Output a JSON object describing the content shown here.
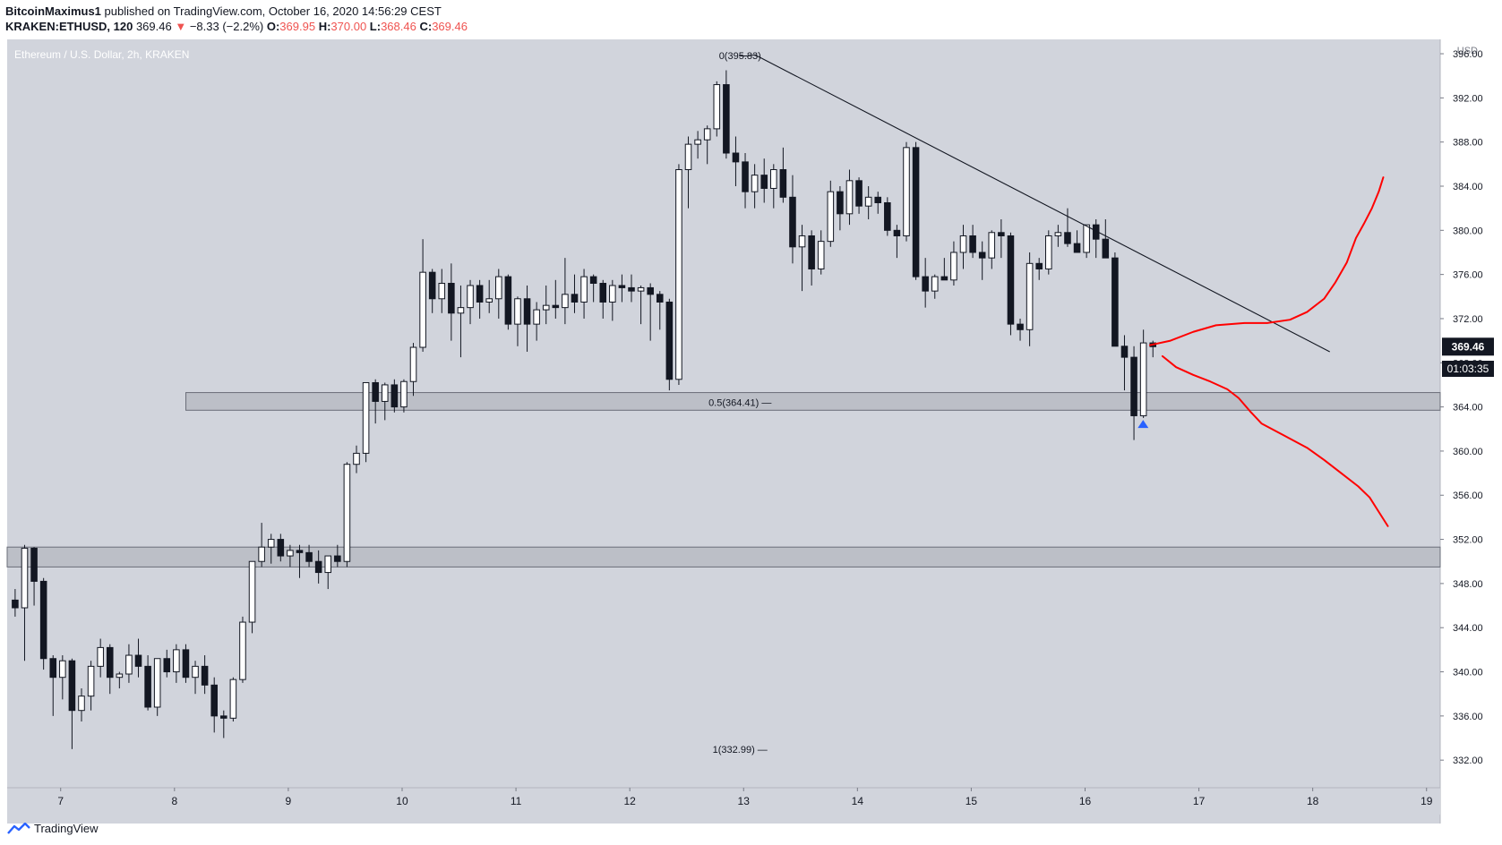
{
  "header": {
    "author": "BitcoinMaximus1",
    "published": "published on TradingView.com, October 16, 2020 14:56:29 CEST",
    "symbol": "KRAKEN:ETHUSD, 120",
    "last": "369.46",
    "arrow": "▼",
    "change": "−8.33 (−2.2%)",
    "o_label": "O:",
    "o": "369.95",
    "h_label": "H:",
    "h": "370.00",
    "l_label": "L:",
    "l": "368.46",
    "c_label": "C:",
    "c": "369.46"
  },
  "footer": {
    "brand": "TradingView"
  },
  "chart_data": {
    "type": "candlestick",
    "title": "Ethereum / U.S. Dollar, 2h, KRAKEN",
    "currency": "USD",
    "ylim": [
      329.5,
      397.3
    ],
    "xlim": [
      6.53,
      19.12
    ],
    "y_ticks": [
      "396.00",
      "392.00",
      "388.00",
      "384.00",
      "380.00",
      "376.00",
      "372.00",
      "368.00",
      "364.00",
      "360.00",
      "356.00",
      "352.00",
      "348.00",
      "344.00",
      "340.00",
      "336.00",
      "332.00"
    ],
    "x_ticks": [
      "7",
      "8",
      "9",
      "10",
      "11",
      "12",
      "13",
      "14",
      "15",
      "16",
      "17",
      "18",
      "19"
    ],
    "price_label": "369.46",
    "countdown_label": "01:03:35",
    "candle_step_days": 0.0833,
    "candles_start_day": 6.6,
    "candles": [
      [
        346.5,
        347.5,
        345.0,
        345.8
      ],
      [
        345.8,
        351.5,
        341.0,
        351.2
      ],
      [
        351.2,
        351.3,
        346.0,
        348.2
      ],
      [
        348.2,
        348.5,
        340.2,
        341.2
      ],
      [
        341.2,
        341.5,
        336.0,
        339.5
      ],
      [
        339.5,
        341.5,
        337.5,
        341.0
      ],
      [
        341.0,
        341.2,
        333.0,
        336.5
      ],
      [
        336.5,
        338.5,
        335.5,
        337.8
      ],
      [
        337.8,
        341.0,
        336.5,
        340.5
      ],
      [
        340.5,
        343.0,
        339.5,
        342.2
      ],
      [
        342.2,
        342.5,
        338.0,
        339.5
      ],
      [
        339.5,
        340.0,
        338.5,
        339.8
      ],
      [
        339.8,
        342.5,
        339.0,
        341.5
      ],
      [
        341.5,
        343.0,
        339.5,
        340.5
      ],
      [
        340.5,
        341.5,
        336.5,
        336.8
      ],
      [
        336.8,
        341.0,
        336.0,
        341.2
      ],
      [
        341.2,
        342.0,
        339.5,
        340.0
      ],
      [
        340.0,
        342.5,
        339.0,
        342.0
      ],
      [
        342.0,
        342.5,
        339.0,
        339.5
      ],
      [
        339.5,
        341.0,
        338.0,
        340.5
      ],
      [
        340.5,
        341.5,
        338.0,
        338.8
      ],
      [
        338.8,
        339.5,
        334.5,
        336.0
      ],
      [
        336.0,
        336.5,
        334.0,
        335.8
      ],
      [
        335.8,
        339.5,
        335.5,
        339.3
      ],
      [
        339.3,
        345.0,
        339.0,
        344.5
      ],
      [
        344.5,
        350.0,
        343.5,
        350.0
      ],
      [
        350.0,
        353.5,
        349.5,
        351.3
      ],
      [
        351.3,
        352.5,
        349.8,
        352.0
      ],
      [
        352.0,
        352.5,
        350.0,
        350.5
      ],
      [
        350.5,
        351.5,
        349.5,
        351.0
      ],
      [
        351.0,
        351.5,
        348.5,
        350.8
      ],
      [
        350.8,
        351.5,
        349.5,
        350.0
      ],
      [
        350.0,
        351.0,
        348.0,
        349.0
      ],
      [
        349.0,
        350.5,
        347.5,
        350.5
      ],
      [
        350.5,
        351.5,
        349.5,
        350.0
      ],
      [
        350.0,
        359.0,
        349.5,
        358.8
      ],
      [
        358.8,
        360.5,
        358.0,
        359.8
      ],
      [
        359.8,
        366.0,
        359.0,
        366.2
      ],
      [
        366.2,
        366.5,
        362.5,
        364.5
      ],
      [
        364.5,
        366.2,
        362.8,
        366.0
      ],
      [
        366.0,
        366.5,
        363.5,
        364.0
      ],
      [
        364.0,
        366.5,
        363.5,
        366.3
      ],
      [
        366.3,
        369.8,
        365.0,
        369.4
      ],
      [
        369.4,
        379.2,
        369.0,
        376.2
      ],
      [
        376.2,
        376.5,
        372.5,
        373.8
      ],
      [
        373.8,
        376.5,
        372.5,
        375.2
      ],
      [
        375.2,
        377.0,
        370.0,
        372.5
      ],
      [
        372.5,
        375.0,
        368.5,
        373.0
      ],
      [
        373.0,
        375.5,
        371.5,
        375.0
      ],
      [
        375.0,
        375.5,
        372.0,
        373.5
      ],
      [
        373.5,
        375.5,
        372.5,
        373.8
      ],
      [
        373.8,
        376.5,
        372.0,
        375.8
      ],
      [
        375.8,
        376.0,
        371.0,
        371.5
      ],
      [
        371.5,
        374.0,
        369.5,
        373.8
      ],
      [
        373.8,
        375.0,
        369.0,
        371.5
      ],
      [
        371.5,
        373.5,
        370.0,
        372.8
      ],
      [
        372.8,
        375.0,
        371.5,
        373.2
      ],
      [
        373.2,
        375.5,
        372.0,
        373.0
      ],
      [
        373.0,
        377.5,
        371.5,
        374.2
      ],
      [
        374.2,
        376.0,
        372.5,
        373.5
      ],
      [
        373.5,
        376.5,
        372.0,
        375.8
      ],
      [
        375.8,
        376.0,
        373.5,
        375.2
      ],
      [
        375.2,
        375.5,
        372.0,
        373.5
      ],
      [
        373.5,
        375.5,
        371.8,
        375.0
      ],
      [
        375.0,
        376.0,
        373.5,
        374.8
      ],
      [
        374.8,
        376.0,
        373.5,
        374.5
      ],
      [
        374.5,
        375.0,
        371.5,
        374.8
      ],
      [
        374.8,
        375.2,
        370.0,
        374.2
      ],
      [
        374.2,
        374.5,
        371.0,
        373.5
      ],
      [
        373.5,
        373.8,
        365.5,
        366.5
      ],
      [
        366.5,
        386.0,
        366.0,
        385.5
      ],
      [
        385.5,
        388.5,
        382.0,
        387.8
      ],
      [
        387.8,
        389.0,
        386.5,
        388.2
      ],
      [
        388.2,
        389.5,
        386.0,
        389.2
      ],
      [
        389.2,
        393.5,
        388.5,
        393.2
      ],
      [
        393.2,
        394.5,
        386.5,
        387.0
      ],
      [
        387.0,
        388.5,
        384.0,
        386.2
      ],
      [
        386.2,
        387.0,
        382.0,
        383.5
      ],
      [
        383.5,
        386.0,
        382.0,
        385.0
      ],
      [
        385.0,
        386.5,
        382.5,
        383.8
      ],
      [
        383.8,
        386.0,
        382.0,
        385.5
      ],
      [
        385.5,
        387.5,
        382.5,
        383.0
      ],
      [
        383.0,
        385.0,
        377.0,
        378.5
      ],
      [
        378.5,
        380.5,
        374.5,
        379.5
      ],
      [
        379.5,
        380.0,
        375.0,
        376.5
      ],
      [
        376.5,
        380.0,
        376.0,
        379.0
      ],
      [
        379.0,
        384.5,
        378.5,
        383.5
      ],
      [
        383.5,
        384.0,
        380.0,
        381.5
      ],
      [
        381.5,
        385.5,
        380.5,
        384.5
      ],
      [
        384.5,
        384.8,
        381.5,
        382.2
      ],
      [
        382.2,
        384.0,
        381.0,
        383.0
      ],
      [
        383.0,
        383.5,
        381.5,
        382.5
      ],
      [
        382.5,
        383.0,
        379.5,
        380.0
      ],
      [
        380.0,
        380.5,
        377.5,
        379.5
      ],
      [
        379.5,
        388.0,
        379.0,
        387.5
      ],
      [
        387.5,
        388.0,
        375.5,
        375.8
      ],
      [
        375.8,
        377.5,
        373.0,
        374.5
      ],
      [
        374.5,
        376.0,
        373.8,
        375.8
      ],
      [
        375.8,
        377.5,
        375.5,
        375.5
      ],
      [
        375.5,
        379.0,
        375.0,
        378.0
      ],
      [
        378.0,
        380.5,
        376.5,
        379.5
      ],
      [
        379.5,
        380.5,
        377.5,
        378.0
      ],
      [
        378.0,
        379.0,
        375.5,
        377.5
      ],
      [
        377.5,
        380.0,
        376.5,
        379.8
      ],
      [
        379.8,
        381.0,
        377.5,
        379.5
      ],
      [
        379.5,
        379.8,
        370.5,
        371.5
      ],
      [
        371.5,
        372.0,
        370.0,
        371.0
      ],
      [
        371.0,
        378.0,
        369.5,
        377.0
      ],
      [
        377.0,
        377.5,
        375.5,
        376.5
      ],
      [
        376.5,
        380.0,
        376.0,
        379.5
      ],
      [
        379.5,
        380.5,
        378.5,
        379.8
      ],
      [
        379.8,
        382.0,
        378.5,
        378.8
      ],
      [
        378.8,
        380.0,
        378.0,
        378.0
      ],
      [
        378.0,
        380.5,
        377.5,
        380.5
      ],
      [
        380.5,
        381.0,
        377.5,
        379.2
      ],
      [
        379.2,
        381.0,
        377.5,
        377.5
      ],
      [
        377.5,
        378.0,
        369.5,
        369.5
      ],
      [
        369.5,
        370.5,
        365.5,
        368.5
      ],
      [
        368.5,
        369.5,
        361.0,
        363.2
      ],
      [
        363.2,
        371.0,
        363.0,
        369.8
      ],
      [
        369.8,
        370.0,
        368.5,
        369.46
      ]
    ],
    "annotations": [
      {
        "label": "0(395.83)",
        "price": 395.83,
        "day": 13.0
      },
      {
        "label": "0.5(364.41) —",
        "price": 364.41,
        "day": 13.0
      },
      {
        "label": "1(332.99) —",
        "price": 332.99,
        "day": 13.0
      }
    ],
    "zones": [
      {
        "from_day": 8.1,
        "to_day": 19.12,
        "low": 363.7,
        "high": 365.3
      },
      {
        "from_day": 6.53,
        "to_day": 19.12,
        "low": 349.5,
        "high": 351.3
      }
    ],
    "trendline": [
      [
        13.1,
        395.9
      ],
      [
        18.15,
        369.0
      ]
    ],
    "projections": [
      {
        "color": "#ff0000",
        "points": [
          [
            16.57,
            369.6
          ],
          [
            16.75,
            370.0
          ],
          [
            16.95,
            370.8
          ],
          [
            17.15,
            371.4
          ],
          [
            17.4,
            371.6
          ],
          [
            17.6,
            371.6
          ],
          [
            17.8,
            371.9
          ],
          [
            17.95,
            372.6
          ],
          [
            18.1,
            373.8
          ],
          [
            18.2,
            375.3
          ],
          [
            18.3,
            377.1
          ],
          [
            18.38,
            379.3
          ],
          [
            18.45,
            380.6
          ],
          [
            18.52,
            382.0
          ],
          [
            18.58,
            383.5
          ],
          [
            18.62,
            384.8
          ]
        ]
      },
      {
        "color": "#ff0000",
        "points": [
          [
            16.68,
            368.6
          ],
          [
            16.8,
            367.6
          ],
          [
            16.95,
            366.9
          ],
          [
            17.1,
            366.3
          ],
          [
            17.25,
            365.6
          ],
          [
            17.35,
            364.8
          ],
          [
            17.45,
            363.6
          ],
          [
            17.55,
            362.5
          ],
          [
            17.75,
            361.4
          ],
          [
            17.95,
            360.3
          ],
          [
            18.1,
            359.2
          ],
          [
            18.25,
            358.0
          ],
          [
            18.4,
            356.8
          ],
          [
            18.5,
            355.8
          ],
          [
            18.58,
            354.5
          ],
          [
            18.66,
            353.2
          ]
        ]
      }
    ],
    "marker": {
      "type": "triangle-up",
      "color": "#2962ff",
      "day": 16.51,
      "price": 362.5
    }
  }
}
